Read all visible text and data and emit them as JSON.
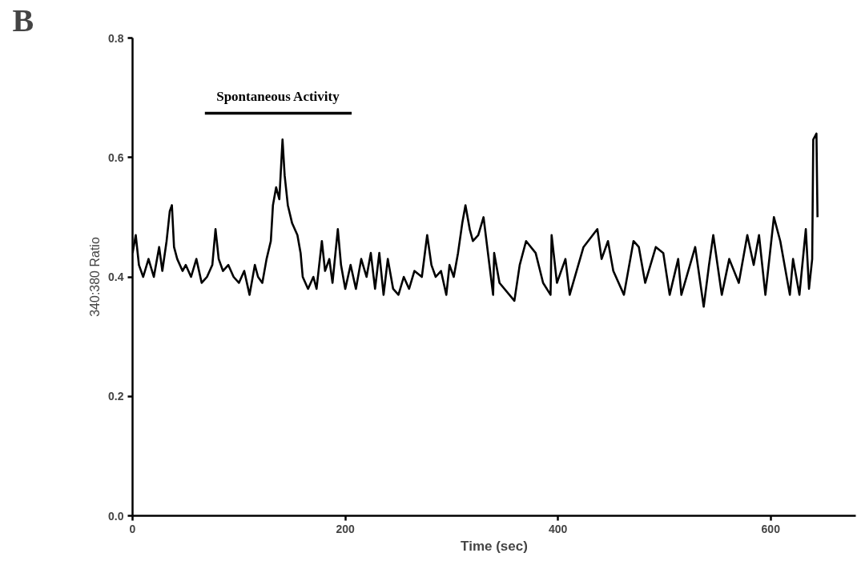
{
  "chart_data": {
    "type": "line",
    "xlabel": "Time (sec)",
    "ylabel": "340:380 Ratio",
    "annotations": [
      "B"
    ],
    "xlim": [
      0,
      680
    ],
    "xticks": [
      0,
      200,
      400,
      600
    ],
    "ylim": [
      0,
      0.8
    ],
    "yticks": [
      {
        "value": 0,
        "label": "0.0"
      },
      {
        "value": 0.2,
        "label": "0.2"
      },
      {
        "value": 0.4,
        "label": "0.4"
      },
      {
        "value": 0.6,
        "label": "0.6"
      },
      {
        "value": 0.8,
        "label": "0.8"
      }
    ],
    "grid": false,
    "marker": "none",
    "line_style": "solid",
    "series": [
      {
        "name": "Spontaneous Activity",
        "color": "#000000",
        "x": [
          68,
          206
        ],
        "values": [
          0.674,
          0.674
        ]
      },
      {
        "color": "#000000",
        "x": [
          0,
          3,
          6,
          10,
          15,
          20,
          25,
          28,
          32,
          35,
          37,
          39,
          42,
          47,
          50,
          55,
          60,
          65,
          70,
          75,
          78,
          81,
          85,
          90,
          95,
          100,
          105,
          110,
          115,
          118,
          122,
          126,
          130,
          132,
          135,
          138,
          141,
          143,
          146,
          150,
          155,
          158,
          160,
          165,
          170,
          173,
          178,
          181,
          185,
          188,
          193,
          196,
          200,
          205,
          210,
          215,
          220,
          224,
          228,
          232,
          236,
          240,
          245,
          250,
          255,
          260,
          265,
          272,
          277,
          281,
          285,
          290,
          295,
          298,
          302,
          306,
          310,
          313,
          317,
          320,
          325,
          330,
          339,
          340,
          345,
          359,
          364,
          370,
          379,
          386,
          393,
          394,
          399,
          407,
          411,
          424,
          437,
          441,
          447,
          452,
          462,
          471,
          476,
          482,
          492,
          499,
          505,
          513,
          516,
          529,
          537,
          542,
          546,
          554,
          561,
          570,
          578,
          584,
          589,
          595,
          603,
          609,
          618,
          621,
          627,
          633,
          636,
          639,
          640,
          643,
          644
        ],
        "values": [
          0.44,
          0.47,
          0.42,
          0.4,
          0.43,
          0.4,
          0.45,
          0.41,
          0.46,
          0.51,
          0.52,
          0.45,
          0.43,
          0.41,
          0.42,
          0.4,
          0.43,
          0.39,
          0.4,
          0.42,
          0.48,
          0.43,
          0.41,
          0.42,
          0.4,
          0.39,
          0.41,
          0.37,
          0.42,
          0.4,
          0.39,
          0.43,
          0.46,
          0.52,
          0.55,
          0.53,
          0.63,
          0.57,
          0.52,
          0.49,
          0.47,
          0.44,
          0.4,
          0.38,
          0.4,
          0.38,
          0.46,
          0.41,
          0.43,
          0.39,
          0.48,
          0.42,
          0.38,
          0.42,
          0.38,
          0.43,
          0.4,
          0.44,
          0.38,
          0.44,
          0.37,
          0.43,
          0.38,
          0.37,
          0.4,
          0.38,
          0.41,
          0.4,
          0.47,
          0.42,
          0.4,
          0.41,
          0.37,
          0.42,
          0.4,
          0.44,
          0.49,
          0.52,
          0.48,
          0.46,
          0.47,
          0.5,
          0.37,
          0.44,
          0.39,
          0.36,
          0.42,
          0.46,
          0.44,
          0.39,
          0.37,
          0.47,
          0.39,
          0.43,
          0.37,
          0.45,
          0.48,
          0.43,
          0.46,
          0.41,
          0.37,
          0.46,
          0.45,
          0.39,
          0.45,
          0.44,
          0.37,
          0.43,
          0.37,
          0.45,
          0.35,
          0.42,
          0.47,
          0.37,
          0.43,
          0.39,
          0.47,
          0.42,
          0.47,
          0.37,
          0.5,
          0.46,
          0.37,
          0.43,
          0.37,
          0.48,
          0.38,
          0.43,
          0.63,
          0.64,
          0.5
        ]
      }
    ]
  }
}
